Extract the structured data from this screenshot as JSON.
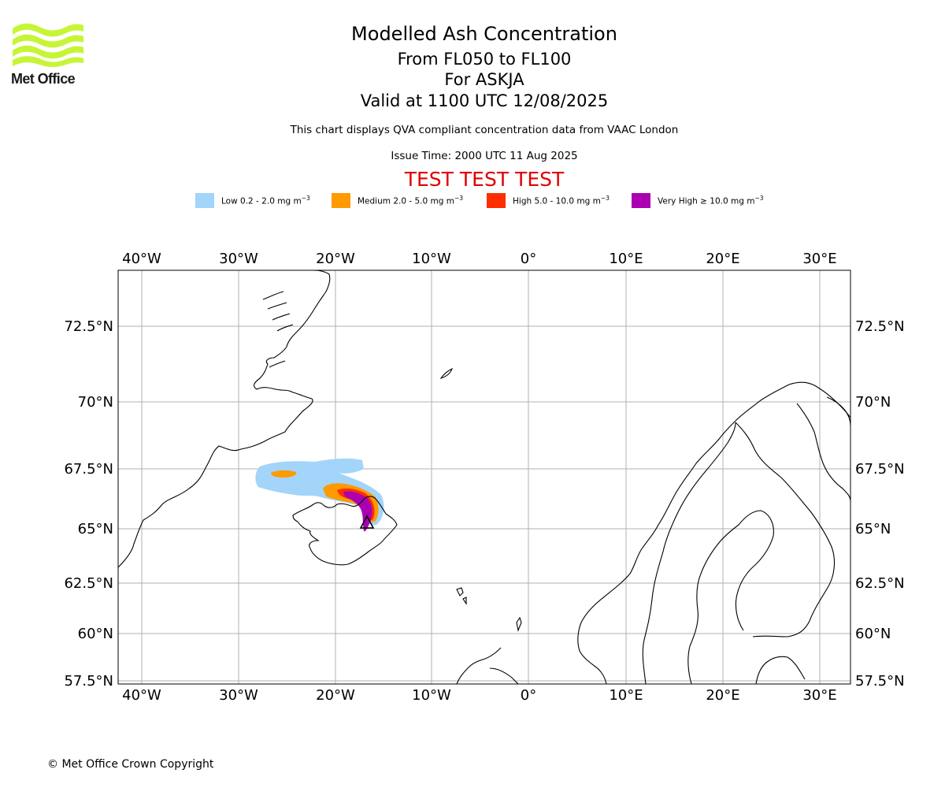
{
  "header": {
    "logo_text": "Met Office",
    "title": "Modelled Ash Concentration",
    "levels": "From FL050 to FL100",
    "volcano": "For ASKJA",
    "valid_time": "Valid at 1100 UTC 12/08/2025",
    "note": "This chart displays QVA compliant concentration data from VAAC London",
    "issue_time": "Issue Time: 2000 UTC 11 Aug 2025",
    "test_banner": "TEST TEST TEST"
  },
  "legend": [
    {
      "label": "Low 0.2 - 2.0 mg m",
      "exp": "−3",
      "color": "#a3d4fa"
    },
    {
      "label": "Medium 2.0 - 5.0 mg m",
      "exp": "−3",
      "color": "#ff9a00"
    },
    {
      "label": "High 5.0 - 10.0 mg m",
      "exp": "−3",
      "color": "#ff2e00"
    },
    {
      "label": "Very High  ≥  10.0 mg m",
      "exp": "−3",
      "color": "#aa00b2"
    }
  ],
  "map": {
    "lon_ticks": [
      "40°W",
      "30°W",
      "20°W",
      "10°W",
      "0°",
      "10°E",
      "20°E",
      "30°E"
    ],
    "lat_ticks": [
      "72.5°N",
      "70°N",
      "67.5°N",
      "65°N",
      "62.5°N",
      "60°N",
      "57.5°N"
    ],
    "grid": true,
    "volcano_marker": "triangle"
  },
  "footer": {
    "copyright": "© Met Office Crown Copyright"
  }
}
